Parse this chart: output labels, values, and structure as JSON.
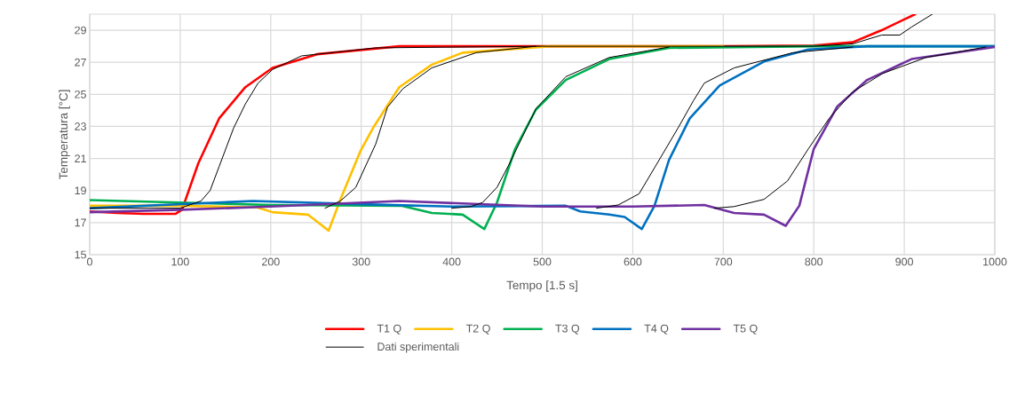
{
  "chart_data": {
    "type": "line",
    "xlabel": "Tempo [1.5 s]",
    "ylabel": "Temperatura [°C]",
    "xlim": [
      0,
      1000
    ],
    "ylim": [
      15,
      30
    ],
    "xticks": [
      0,
      100,
      200,
      300,
      400,
      500,
      600,
      700,
      800,
      900,
      1000
    ],
    "yticks": [
      15,
      17,
      19,
      21,
      23,
      25,
      27,
      29
    ],
    "grid": true,
    "legend": "bottom",
    "line_style": "solid",
    "series": [
      {
        "name": "T1 Q",
        "color": "#ff0000",
        "x": [
          0,
          30,
          60,
          95,
          102,
          120,
          143,
          172,
          202,
          251,
          342,
          500,
          700,
          800,
          843,
          875,
          912
        ],
        "values": [
          17.7,
          17.6,
          17.55,
          17.55,
          17.8,
          20.7,
          23.5,
          25.45,
          26.65,
          27.5,
          28.0,
          28.0,
          28.0,
          28.05,
          28.25,
          29.0,
          30.0
        ]
      },
      {
        "name": "T2 Q",
        "color": "#ffc000",
        "x": [
          0,
          100,
          185,
          202,
          241,
          264,
          277,
          299,
          313,
          342,
          378,
          412,
          509,
          700
        ],
        "values": [
          18.05,
          18.05,
          17.95,
          17.65,
          17.5,
          16.5,
          18.45,
          21.45,
          22.9,
          25.45,
          26.85,
          27.6,
          28.0,
          28.0
        ]
      },
      {
        "name": "T3 Q",
        "color": "#00b050",
        "x": [
          0,
          100,
          200,
          345,
          378,
          412,
          436,
          450,
          470,
          493,
          526,
          574,
          640,
          800,
          1000
        ],
        "values": [
          18.4,
          18.25,
          18.1,
          18.05,
          17.6,
          17.5,
          16.6,
          18.25,
          21.6,
          24.05,
          25.9,
          27.2,
          27.9,
          28.0,
          28.0
        ]
      },
      {
        "name": "T4 Q",
        "color": "#0070c0",
        "x": [
          0,
          180,
          300,
          400,
          526,
          542,
          574,
          591,
          610,
          624,
          640,
          663,
          696,
          745,
          794,
          859,
          1000
        ],
        "values": [
          17.9,
          18.35,
          18.15,
          18.0,
          18.05,
          17.7,
          17.5,
          17.35,
          16.6,
          18.05,
          20.9,
          23.5,
          25.55,
          27.05,
          27.8,
          28.0,
          28.0
        ]
      },
      {
        "name": "T5 Q",
        "color": "#7030a0",
        "x": [
          0,
          100,
          200,
          342,
          500,
          600,
          679,
          712,
          745,
          769,
          784,
          800,
          826,
          859,
          908,
          1000
        ],
        "values": [
          17.65,
          17.8,
          18.0,
          18.35,
          18.0,
          18.0,
          18.1,
          17.6,
          17.5,
          16.8,
          18.05,
          21.6,
          24.25,
          25.9,
          27.2,
          27.95
        ]
      },
      {
        "name": "Dati sperimentali",
        "color": "#000000",
        "x": [
          0,
          100,
          123,
          133,
          143,
          159,
          172,
          186,
          202,
          234,
          316,
          500,
          800,
          843,
          875,
          895,
          908,
          931
        ],
        "values": [
          17.9,
          17.9,
          18.35,
          19.0,
          20.5,
          22.9,
          24.4,
          25.7,
          26.55,
          27.4,
          27.9,
          28.0,
          28.0,
          28.15,
          28.7,
          28.7,
          29.2,
          30.0
        ]
      },
      {
        "color": "#000000",
        "x": [
          260,
          277,
          294,
          316,
          329,
          346,
          378,
          427,
          493
        ],
        "values": [
          17.9,
          18.35,
          19.2,
          21.9,
          24.2,
          25.35,
          26.65,
          27.6,
          28.0
        ]
      },
      {
        "color": "#000000",
        "x": [
          400,
          421,
          434,
          450,
          464,
          493,
          526,
          574,
          640
        ],
        "values": [
          17.9,
          18.0,
          18.25,
          19.2,
          20.7,
          24.1,
          26.1,
          27.3,
          27.95
        ]
      },
      {
        "color": "#000000",
        "x": [
          560,
          584,
          607,
          627,
          650,
          667,
          679,
          712,
          777,
          843
        ],
        "values": [
          17.9,
          18.1,
          18.8,
          20.7,
          22.9,
          24.6,
          25.7,
          26.65,
          27.6,
          27.95
        ]
      },
      {
        "color": "#000000",
        "x": [
          690,
          712,
          745,
          771,
          794,
          817,
          843,
          876,
          924,
          990
        ],
        "values": [
          17.9,
          18.0,
          18.45,
          19.6,
          21.6,
          23.5,
          25.15,
          26.3,
          27.3,
          27.95
        ]
      }
    ]
  }
}
